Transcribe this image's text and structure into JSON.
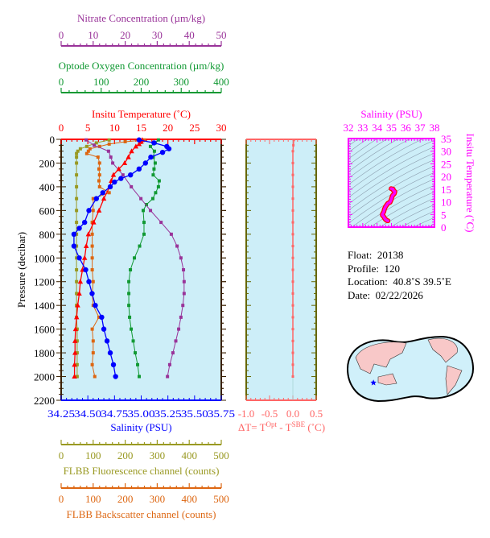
{
  "info": {
    "float_label": "Float:",
    "float": "20138",
    "profile_label": "Profile:",
    "profile": "120",
    "location_label": "Location:",
    "location": "40.8˚S  39.5˚E",
    "date_label": "Date:",
    "date": "02/22/2026"
  },
  "colors": {
    "nitrate": "#993399",
    "oxygen": "#119933",
    "temperature": "#ff0000",
    "salinity": "#0000ff",
    "fluorescence": "#999922",
    "backscatter": "#dd6611",
    "delta_t": "#ff6666",
    "ts": "#ff00ff",
    "plot_bg": "#cdeef8",
    "pressure_axis": "#3a2000"
  },
  "chart_data": {
    "type": "line",
    "pressure_axis": {
      "label": "Pressure (decibar)",
      "range": [
        0,
        2200
      ],
      "ticks": [
        0,
        200,
        400,
        600,
        800,
        1000,
        1200,
        1400,
        1600,
        1800,
        2000,
        2200
      ],
      "inverted": true
    },
    "axes": {
      "nitrate": {
        "label": "Nitrate Concentration (µm/kg)",
        "range": [
          0,
          50
        ],
        "ticks": [
          0,
          10,
          20,
          30,
          40,
          50
        ]
      },
      "oxygen": {
        "label": "Optode Oxygen Concentration (µm/kg)",
        "range": [
          0,
          400
        ],
        "ticks": [
          0,
          100,
          200,
          300,
          400
        ]
      },
      "temperature": {
        "label": "Insitu Temperature (˚C)",
        "range": [
          0,
          30
        ],
        "ticks": [
          0,
          5,
          10,
          15,
          20,
          25,
          30
        ]
      },
      "salinity": {
        "label": "Salinity (PSU)",
        "range": [
          34.25,
          35.75
        ],
        "ticks": [
          "34.25",
          "34.50",
          "34.75",
          "35.00",
          "35.25",
          "35.50",
          "35.75"
        ]
      },
      "fluorescence": {
        "label": "FLBB Fluorescence channel (counts)",
        "range": [
          0,
          500
        ],
        "ticks": [
          0,
          100,
          200,
          300,
          400,
          500
        ]
      },
      "backscatter": {
        "label": "FLBB Backscatter channel (counts)",
        "range": [
          0,
          500
        ],
        "ticks": [
          0,
          100,
          200,
          300,
          400,
          500
        ]
      }
    },
    "series": [
      {
        "key": "temperature",
        "marker": "triangle",
        "pressure": [
          5,
          20,
          40,
          60,
          100,
          150,
          200,
          250,
          300,
          350,
          400,
          500,
          600,
          700,
          800,
          900,
          1000,
          1100,
          1200,
          1300,
          1400,
          1500,
          1600,
          1700,
          1800,
          1900,
          2000
        ],
        "values": [
          15.2,
          15.0,
          14.6,
          14.0,
          13.2,
          12.6,
          11.9,
          10.8,
          9.8,
          9.4,
          9.1,
          8.0,
          7.1,
          6.1,
          5.1,
          4.7,
          4.4,
          4.0,
          3.6,
          3.4,
          3.1,
          2.9,
          2.7,
          2.6,
          2.6,
          2.5,
          2.5
        ]
      },
      {
        "key": "salinity",
        "marker": "circle",
        "pressure": [
          5,
          30,
          60,
          80,
          110,
          150,
          200,
          250,
          300,
          330,
          360,
          400,
          450,
          500,
          600,
          700,
          750,
          800,
          900,
          1000,
          1100,
          1200,
          1300,
          1400,
          1500,
          1600,
          1700,
          1800,
          1900,
          2000
        ],
        "values": [
          34.98,
          35.12,
          35.24,
          35.26,
          35.2,
          35.09,
          35.04,
          34.98,
          34.9,
          34.81,
          34.75,
          34.71,
          34.64,
          34.58,
          34.51,
          34.47,
          34.42,
          34.37,
          34.37,
          34.42,
          34.48,
          34.51,
          34.54,
          34.57,
          34.63,
          34.65,
          34.68,
          34.71,
          34.74,
          34.76
        ]
      },
      {
        "key": "oxygen",
        "marker": "square",
        "pressure": [
          5,
          30,
          60,
          100,
          150,
          200,
          250,
          300,
          350,
          400,
          450,
          500,
          550,
          600,
          700,
          800,
          900,
          1000,
          1100,
          1200,
          1300,
          1400,
          1500,
          1600,
          1700,
          1800,
          1900,
          2000
        ],
        "values": [
          243,
          235,
          223,
          233,
          230,
          235,
          232,
          230,
          245,
          243,
          236,
          229,
          213,
          205,
          207,
          207,
          196,
          183,
          173,
          169,
          169,
          169,
          171,
          175,
          180,
          185,
          191,
          195
        ]
      },
      {
        "key": "nitrate",
        "marker": "square",
        "pressure": [
          5,
          50,
          100,
          150,
          200,
          300,
          400,
          500,
          600,
          700,
          800,
          900,
          1000,
          1100,
          1200,
          1300,
          1400,
          1500,
          1600,
          1700,
          1800,
          1900,
          2000
        ],
        "values": [
          7.8,
          10.3,
          14.8,
          15.5,
          16.1,
          19.3,
          21.9,
          24.9,
          27.9,
          31.2,
          34.4,
          36.2,
          37.4,
          38.2,
          38.4,
          38.4,
          38.0,
          37.4,
          36.7,
          35.8,
          34.9,
          33.9,
          33.2
        ]
      },
      {
        "key": "fluorescence",
        "marker": "square",
        "pressure": [
          5,
          30,
          60,
          80,
          100,
          120,
          150,
          200,
          300,
          400,
          500,
          600,
          700,
          800,
          900,
          1000,
          1100,
          1200,
          1300,
          1400,
          1500,
          1600,
          1700,
          1800,
          1900,
          2000
        ],
        "values": [
          150,
          110,
          80,
          60,
          52,
          48,
          48,
          48,
          48,
          48,
          48,
          48,
          48,
          48,
          48,
          48,
          48,
          48,
          48,
          48,
          48,
          50,
          50,
          50,
          50,
          50
        ]
      },
      {
        "key": "backscatter",
        "marker": "square",
        "pressure": [
          5,
          20,
          40,
          60,
          80,
          100,
          120,
          150,
          200,
          250,
          300,
          350,
          400,
          450,
          500,
          600,
          700,
          800,
          900,
          1000,
          1100,
          1200,
          1300,
          1400,
          1500,
          1600,
          1700,
          1800,
          1900,
          2000
        ],
        "values": [
          260,
          200,
          150,
          120,
          90,
          85,
          80,
          115,
          120,
          118,
          120,
          118,
          120,
          150,
          100,
          100,
          97,
          97,
          97,
          97,
          97,
          100,
          97,
          100,
          118,
          97,
          100,
          100,
          97,
          105
        ]
      }
    ],
    "delta_t": {
      "label_main": "ΔT= T",
      "label_sup1": "Opt",
      "label_mid": " - T",
      "label_sup2": "SBE",
      "label_unit": " (˚C)",
      "range": [
        -1.0,
        0.5
      ],
      "ticks": [
        "-1.0",
        "-0.5",
        "0.0",
        "0.5"
      ],
      "pressure": [
        5,
        50,
        100,
        200,
        300,
        400,
        500,
        600,
        700,
        800,
        900,
        1000,
        1100,
        1200,
        1300,
        1400,
        1500,
        1600,
        1700,
        1800,
        1900,
        2000
      ],
      "values": [
        0.02,
        0.01,
        0.0,
        0.0,
        0.0,
        0.0,
        0.0,
        0.0,
        0.0,
        0.0,
        0.0,
        0.0,
        0.0,
        0.0,
        0.0,
        0.0,
        0.0,
        0.0,
        0.0,
        0.0,
        0.0,
        0.0
      ]
    },
    "ts_diagram": {
      "x_label": "Salinity (PSU)",
      "x_range": [
        32,
        38
      ],
      "x_ticks": [
        32,
        33,
        34,
        35,
        36,
        37,
        38
      ],
      "y_label": "Insitu Temperature (˚C)",
      "y_range": [
        0,
        35
      ],
      "y_ticks": [
        0,
        5,
        10,
        15,
        20,
        25,
        30,
        35
      ],
      "density_contours": true
    },
    "map": {
      "projection": "world, Pacific-centered",
      "marker": "star",
      "lat": -40.8,
      "lon": 39.5
    }
  }
}
